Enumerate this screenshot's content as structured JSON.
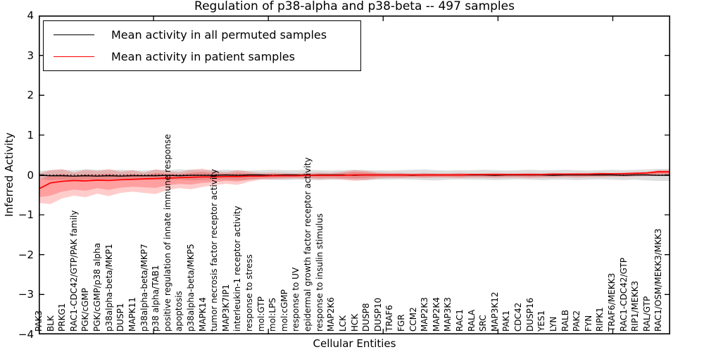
{
  "title": "Regulation of p38-alpha and p38-beta -- 497 samples",
  "legend": {
    "items": [
      {
        "label": "Mean activity in all permuted samples",
        "color": "#000000"
      },
      {
        "label": "Mean activity in patient samples",
        "color": "#ff0000"
      }
    ]
  },
  "chart_data": {
    "type": "line",
    "title": "Regulation of p38-alpha and p38-beta -- 497 samples",
    "xlabel": "Cellular Entities",
    "ylabel": "Inferred Activity",
    "ylim": [
      -4,
      4
    ],
    "yticks": [
      4,
      3,
      2,
      1,
      0,
      -1,
      -2,
      -3,
      -4
    ],
    "ytick_labels": [
      "4",
      "3",
      "2",
      "1",
      "0",
      "−1",
      "−2",
      "−3",
      "−4"
    ],
    "grid": false,
    "zero_line_style": "dotted",
    "legend_position": "upper left",
    "categories": [
      "PAK3",
      "BLK",
      "PRKG1",
      "RAC1-CDC42/GTP/PAK family",
      "PGK/cGMP",
      "PGK/cGMP/p38 alpha",
      "p38alpha-beta/MKP1",
      "DUSP1",
      "MAPK11",
      "p38alpha-beta/MKP7",
      "p38 alpha/TAB1",
      "positive regulation of innate immune response",
      "apoptosis",
      "p38alpha-beta/MKP5",
      "MAPK14",
      "tumor necrosis factor receptor activity",
      "MAP3K7IP1",
      "interleukin-1 receptor activity",
      "response to stress",
      "mol:GTP",
      "mol:LPS",
      "mol:cGMP",
      "response to UV",
      "epidermal growth factor receptor activity",
      "response to insulin stimulus",
      "MAP2K6",
      "LCK",
      "HCK",
      "DUSP8",
      "DUSP10",
      "TRAF6",
      "FGR",
      "CCM2",
      "MAP2K3",
      "MAP2K4",
      "MAP3K3",
      "RAC1",
      "RALA",
      "SRC",
      "MAP3K12",
      "PAK1",
      "CDC42",
      "DUSP16",
      "YES1",
      "LYN",
      "RALB",
      "PAK2",
      "FYN",
      "RIPK1",
      "TRAF6/MEKK3",
      "RAC1-CDC42/GTP",
      "RIP1/MEKK3",
      "RAL/GTP",
      "RAC1/OSM/MEKK3/MKK3"
    ],
    "series": [
      {
        "name": "Mean activity in all permuted samples",
        "color": "#000000",
        "values": [
          -0.01,
          -0.02,
          -0.02,
          -0.03,
          -0.02,
          -0.03,
          -0.02,
          -0.03,
          -0.02,
          -0.02,
          -0.02,
          -0.01,
          -0.02,
          -0.01,
          -0.01,
          -0.01,
          0,
          -0.01,
          0,
          0,
          -0.01,
          0,
          0,
          -0.01,
          0,
          0,
          0,
          -0.01,
          0,
          0,
          0,
          0,
          -0.01,
          0,
          0,
          0,
          0,
          0,
          0,
          -0.01,
          0,
          0,
          0,
          0,
          -0.01,
          0,
          0,
          0,
          0,
          0,
          -0.01,
          0,
          0,
          -0.01
        ]
      },
      {
        "name": "Mean activity in patient samples",
        "color": "#ff0000",
        "values": [
          -0.35,
          -0.2,
          -0.16,
          -0.14,
          -0.15,
          -0.13,
          -0.14,
          -0.12,
          -0.11,
          -0.1,
          -0.09,
          -0.08,
          -0.07,
          -0.06,
          -0.05,
          -0.05,
          -0.04,
          -0.04,
          -0.03,
          -0.03,
          -0.02,
          -0.02,
          -0.02,
          -0.01,
          -0.01,
          -0.01,
          -0.01,
          0,
          0,
          0,
          0,
          0,
          0,
          0,
          0,
          0,
          0,
          0.01,
          0.01,
          0.01,
          0.01,
          0.01,
          0.01,
          0.01,
          0.02,
          0.02,
          0.02,
          0.02,
          0.03,
          0.03,
          0.03,
          0.04,
          0.05,
          0.08
        ]
      }
    ],
    "bands": [
      {
        "name": "permuted-samples-range",
        "color": "rgba(0,0,0,0.13)",
        "upper": [
          0.1,
          0.12,
          0.13,
          0.12,
          0.14,
          0.13,
          0.12,
          0.13,
          0.12,
          0.11,
          0.13,
          0.12,
          0.14,
          0.13,
          0.12,
          0.12,
          0.13,
          0.12,
          0.11,
          0.12,
          0.13,
          0.12,
          0.12,
          0.13,
          0.12,
          0.11,
          0.12,
          0.13,
          0.12,
          0.12,
          0.11,
          0.12,
          0.13,
          0.14,
          0.12,
          0.11,
          0.12,
          0.12,
          0.13,
          0.12,
          0.11,
          0.12,
          0.13,
          0.12,
          0.12,
          0.13,
          0.12,
          0.11,
          0.12,
          0.13,
          0.12,
          0.13,
          0.14,
          0.15
        ],
        "lower": [
          -0.1,
          -0.13,
          -0.12,
          -0.14,
          -0.12,
          -0.12,
          -0.13,
          -0.12,
          -0.11,
          -0.12,
          -0.12,
          -0.13,
          -0.12,
          -0.14,
          -0.13,
          -0.12,
          -0.12,
          -0.13,
          -0.12,
          -0.11,
          -0.12,
          -0.13,
          -0.12,
          -0.12,
          -0.13,
          -0.12,
          -0.11,
          -0.12,
          -0.13,
          -0.12,
          -0.12,
          -0.11,
          -0.12,
          -0.13,
          -0.14,
          -0.12,
          -0.11,
          -0.12,
          -0.12,
          -0.13,
          -0.12,
          -0.11,
          -0.12,
          -0.13,
          -0.12,
          -0.12,
          -0.13,
          -0.12,
          -0.11,
          -0.12,
          -0.13,
          -0.12,
          -0.14,
          -0.15
        ]
      },
      {
        "name": "patient-samples-range",
        "color": "rgba(255,0,0,0.20)",
        "upper": [
          0.03,
          0.12,
          0.15,
          0.06,
          0.13,
          0.1,
          0.15,
          0.08,
          0.12,
          0.06,
          0.14,
          0.1,
          0.07,
          0.13,
          0.16,
          0.1,
          0.07,
          0.12,
          0.08,
          0.05,
          0.06,
          0.05,
          0.04,
          0.05,
          0.06,
          0.05,
          0.08,
          0.12,
          0.1,
          0.06,
          0.05,
          0.05,
          0.04,
          0.05,
          0.04,
          0.04,
          0.05,
          0.04,
          0.04,
          0.05,
          0.04,
          0.04,
          0.05,
          0.04,
          0.05,
          0.04,
          0.05,
          0.05,
          0.06,
          0.05,
          0.06,
          0.07,
          0.08,
          0.12
        ],
        "lower": [
          -0.7,
          -0.73,
          -0.59,
          -0.52,
          -0.56,
          -0.47,
          -0.53,
          -0.45,
          -0.42,
          -0.45,
          -0.48,
          -0.38,
          -0.33,
          -0.36,
          -0.3,
          -0.26,
          -0.22,
          -0.25,
          -0.17,
          -0.12,
          -0.11,
          -0.1,
          -0.09,
          -0.1,
          -0.11,
          -0.1,
          -0.12,
          -0.15,
          -0.13,
          -0.09,
          -0.08,
          -0.08,
          -0.07,
          -0.08,
          -0.07,
          -0.07,
          -0.08,
          -0.07,
          -0.07,
          -0.08,
          -0.07,
          -0.07,
          -0.08,
          -0.07,
          -0.07,
          -0.06,
          -0.07,
          -0.06,
          -0.06,
          -0.05,
          -0.05,
          -0.04,
          -0.03,
          -0.02
        ]
      }
    ]
  }
}
